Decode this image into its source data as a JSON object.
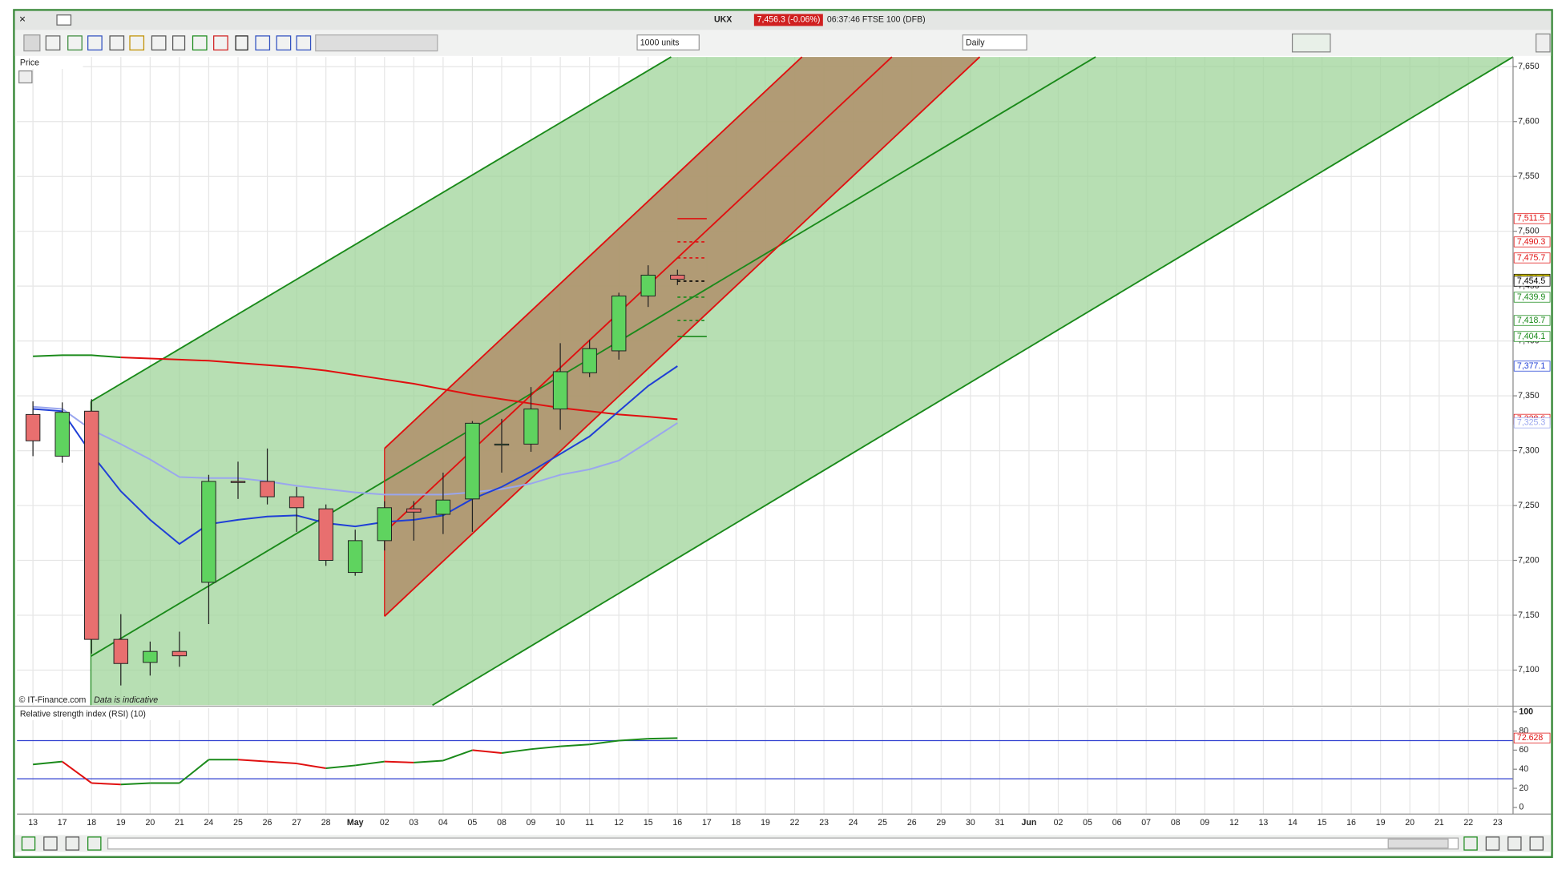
{
  "window": {
    "symbol": "UKX",
    "price_change": "7,456.3 (-0.06%)",
    "status": "06:37:46 FTSE 100 (DFB)"
  },
  "toolbar": {
    "units": "1000 units",
    "interval": "Daily"
  },
  "chart_data": [
    {
      "type": "candlestick",
      "title": "Price",
      "credit": "© IT-Finance.com",
      "note": "Data is indicative",
      "categories": [
        "13",
        "17",
        "18",
        "19",
        "20",
        "21",
        "24",
        "25",
        "26",
        "27",
        "28",
        "May",
        "02",
        "03",
        "04",
        "05",
        "08",
        "09",
        "10",
        "11",
        "12",
        "15",
        "16",
        "17",
        "18",
        "19",
        "22",
        "23",
        "24",
        "25",
        "26",
        "29",
        "30",
        "31",
        "Jun",
        "02",
        "05",
        "06",
        "07",
        "08",
        "09",
        "12",
        "13",
        "14",
        "15",
        "16",
        "19",
        "20",
        "21",
        "22",
        "23"
      ],
      "open": [
        7333,
        7295,
        7336,
        7128,
        7107,
        7117,
        7180,
        7272,
        7272,
        7258,
        7247,
        7189,
        7218,
        7247,
        7242,
        7256,
        7306,
        7306,
        7338,
        7371,
        7391,
        7441,
        7460,
        null,
        null,
        null,
        null,
        null,
        null,
        null,
        null,
        null,
        null,
        null,
        null,
        null,
        null,
        null,
        null,
        null,
        null,
        null,
        null,
        null,
        null,
        null,
        null,
        null,
        null,
        null,
        null
      ],
      "high": [
        7345,
        7344,
        7347,
        7151,
        7126,
        7135,
        7278,
        7290,
        7302,
        7267,
        7251,
        7228,
        7254,
        7254,
        7280,
        7327,
        7329,
        7358,
        7398,
        7401,
        7444,
        7469,
        7465,
        null,
        null,
        null,
        null,
        null,
        null,
        null,
        null,
        null,
        null,
        null,
        null,
        null,
        null,
        null,
        null,
        null,
        null,
        null,
        null,
        null,
        null,
        null,
        null,
        null,
        null,
        null,
        null
      ],
      "low": [
        7295,
        7289,
        7115,
        7086,
        7095,
        7103,
        7142,
        7256,
        7251,
        7226,
        7195,
        7186,
        7209,
        7218,
        7224,
        7226,
        7280,
        7299,
        7319,
        7367,
        7383,
        7431,
        7451,
        null,
        null,
        null,
        null,
        null,
        null,
        null,
        null,
        null,
        null,
        null,
        null,
        null,
        null,
        null,
        null,
        null,
        null,
        null,
        null,
        null,
        null,
        null,
        null,
        null,
        null,
        null,
        null
      ],
      "close": [
        7309,
        7335,
        7128,
        7106,
        7117,
        7113,
        7272,
        7271,
        7258,
        7248,
        7200,
        7218,
        7248,
        7244,
        7255,
        7325,
        7306,
        7338,
        7372,
        7393,
        7441,
        7460,
        7456.3,
        null,
        null,
        null,
        null,
        null,
        null,
        null,
        null,
        null,
        null,
        null,
        null,
        null,
        null,
        null,
        null,
        null,
        null,
        null,
        null,
        null,
        null,
        null,
        null,
        null,
        null,
        null,
        null
      ],
      "up_color": "#5fd35f",
      "down_color": "#e86f6f",
      "overlays": [
        {
          "color": "#1a8a1a",
          "values": [
            7386,
            7387,
            7387,
            7385,
            null,
            null,
            null,
            null,
            null,
            null,
            null,
            null,
            null,
            null,
            null,
            null,
            null,
            null,
            null,
            null,
            null,
            null,
            null,
            null,
            null,
            null,
            null,
            null,
            null,
            null,
            null,
            null,
            null,
            null,
            null,
            null,
            null,
            null,
            null,
            null,
            null,
            null,
            null,
            null,
            null,
            null,
            null,
            null,
            null,
            null,
            null
          ]
        },
        {
          "color": "#e01010",
          "values": [
            null,
            null,
            null,
            7385,
            7384,
            7383,
            7382,
            7380,
            7378,
            7376,
            7373,
            7369,
            7365,
            7361,
            7356,
            7351,
            7347,
            7343,
            7339,
            7336,
            7333,
            7331,
            7328.6,
            null,
            null,
            null,
            null,
            null,
            null,
            null,
            null,
            null,
            null,
            null,
            null,
            null,
            null,
            null,
            null,
            null,
            null,
            null,
            null,
            null,
            null,
            null,
            null,
            null,
            null,
            null,
            null
          ]
        },
        {
          "color": "#9aa6ee",
          "values": [
            7340,
            7338,
            7319,
            7306,
            7292,
            7276,
            7275,
            7275,
            7272,
            7268,
            7265,
            7262,
            7260,
            7260,
            7260,
            7262,
            7265,
            7270,
            7278,
            7283,
            7291,
            7308,
            7325.3,
            null,
            null,
            null,
            null,
            null,
            null,
            null,
            null,
            null,
            null,
            null,
            null,
            null,
            null,
            null,
            null,
            null,
            null,
            null,
            null,
            null,
            null,
            null,
            null,
            null,
            null,
            null,
            null
          ]
        },
        {
          "color": "#1f3fd6",
          "values": [
            7338,
            7336,
            7297,
            7263,
            7237,
            7215,
            7233,
            7237,
            7240,
            7241,
            7234,
            7231,
            7235,
            7237,
            7241,
            7256,
            7267,
            7281,
            7297,
            7313,
            7336,
            7359,
            7377.1,
            null,
            null,
            null,
            null,
            null,
            null,
            null,
            null,
            null,
            null,
            null,
            null,
            null,
            null,
            null,
            null,
            null,
            null,
            null,
            null,
            null,
            null,
            null,
            null,
            null,
            null,
            null,
            null
          ]
        }
      ],
      "ylim": [
        7068,
        7658
      ],
      "yticks": [
        {
          "value": 7100,
          "label": "7,100"
        },
        {
          "value": 7150,
          "label": "7,150"
        },
        {
          "value": 7200,
          "label": "7,200"
        },
        {
          "value": 7250,
          "label": "7,250"
        },
        {
          "value": 7300,
          "label": "7,300"
        },
        {
          "value": 7350,
          "label": "7,350"
        },
        {
          "value": 7400,
          "label": "7,400"
        },
        {
          "value": 7450,
          "label": "7,450"
        },
        {
          "value": 7500,
          "label": "7,500"
        },
        {
          "value": 7550,
          "label": "7,550"
        },
        {
          "value": 7600,
          "label": "7,600"
        },
        {
          "value": 7650,
          "label": "7,650"
        }
      ],
      "price_labels": [
        {
          "value": 7511.5,
          "label": "7,511.5",
          "color": "#e01010",
          "style": "solid"
        },
        {
          "value": 7490.3,
          "label": "7,490.3",
          "color": "#e01010",
          "style": "dashed"
        },
        {
          "value": 7475.7,
          "label": "7,475.7",
          "color": "#e01010",
          "style": "dashed"
        },
        {
          "value": 7456.3,
          "label": "7,456.3",
          "color": "#000000",
          "background": "#f2e200"
        },
        {
          "value": 7454.5,
          "label": "7,454.5",
          "color": "#000000",
          "style": "dashed"
        },
        {
          "value": 7439.9,
          "label": "7,439.9",
          "color": "#1a8a1a",
          "style": "dashed"
        },
        {
          "value": 7418.7,
          "label": "7,418.7",
          "color": "#1a8a1a",
          "style": "dashed"
        },
        {
          "value": 7404.1,
          "label": "7,404.1",
          "color": "#1a8a1a",
          "style": "solid"
        },
        {
          "value": 7377.1,
          "label": "7,377.1",
          "color": "#1f3fd6"
        },
        {
          "value": 7328.6,
          "label": "7,328.6",
          "color": "#e01010"
        },
        {
          "value": 7325.3,
          "label": "7,325.3",
          "color": "#9aa6ee"
        }
      ],
      "grid": true
    },
    {
      "type": "line",
      "title": "Relative strength index (RSI) (10)",
      "values": [
        45,
        48,
        25.5,
        24,
        25.5,
        25.5,
        50,
        50,
        48,
        46,
        41,
        44,
        48,
        47,
        49,
        60,
        57,
        61,
        64,
        66,
        70,
        72,
        72.628,
        null,
        null,
        null,
        null,
        null,
        null,
        null,
        null,
        null,
        null,
        null,
        null,
        null,
        null,
        null,
        null,
        null,
        null,
        null,
        null,
        null,
        null,
        null,
        null,
        null,
        null,
        null,
        null
      ],
      "last_label": "72.628",
      "up_color": "#1a8a1a",
      "down_color": "#e01010",
      "levels": [
        30,
        70
      ],
      "level_color": "#3040d0",
      "ylim": [
        -7,
        105
      ],
      "yticks": [
        0,
        20,
        40,
        60,
        80,
        100
      ]
    }
  ]
}
